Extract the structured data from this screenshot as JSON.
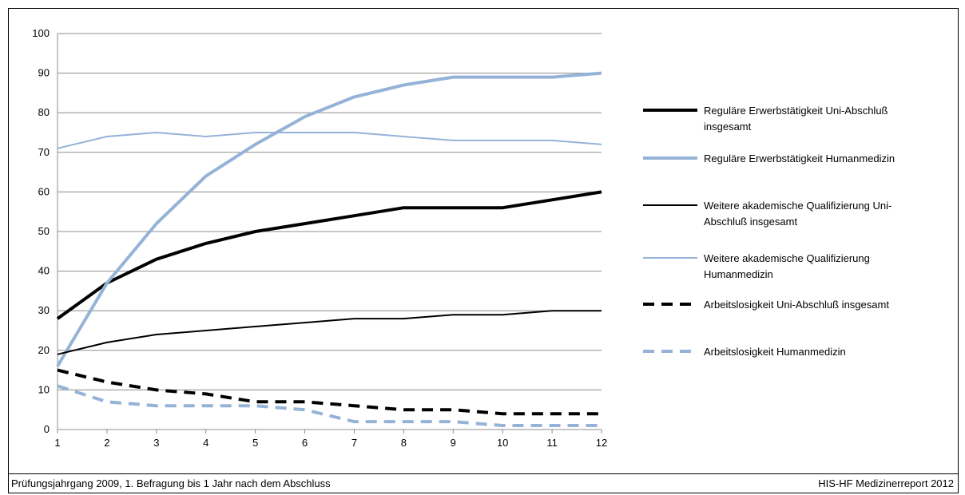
{
  "chart_data": {
    "type": "line",
    "x": [
      1,
      2,
      3,
      4,
      5,
      6,
      7,
      8,
      9,
      10,
      11,
      12
    ],
    "ylim": [
      0,
      100
    ],
    "yticks": [
      0,
      10,
      20,
      30,
      40,
      50,
      60,
      70,
      80,
      90,
      100
    ],
    "grid": true,
    "legend_position": "right",
    "series": [
      {
        "name": "Reguläre Erwerbstätigkeit Uni-Abschluß insgesamt",
        "legend_lines": [
          "Reguläre Erwerbstätigkeit Uni-Abschluß",
          "insgesamt"
        ],
        "values": [
          28,
          37,
          43,
          47,
          50,
          52,
          54,
          56,
          56,
          56,
          58,
          60
        ],
        "color": "#000000",
        "style": "solid",
        "weight": "thick"
      },
      {
        "name": "Reguläre Erwerbstätigkeit Humanmedizin",
        "legend_lines": [
          "Reguläre Erwerbstätigkeit Humanmedizin"
        ],
        "values": [
          16,
          37,
          52,
          64,
          72,
          79,
          84,
          87,
          89,
          89,
          89,
          90
        ],
        "color": "#95b3d7",
        "style": "solid",
        "weight": "thick"
      },
      {
        "name": "Weitere akademische Qualifizierung Uni-Abschluß insgesamt",
        "legend_lines": [
          "Weitere akademische Qualifizierung Uni-",
          "Abschluß insgesamt"
        ],
        "values": [
          19,
          22,
          24,
          25,
          26,
          27,
          28,
          28,
          29,
          29,
          30,
          30
        ],
        "color": "#000000",
        "style": "solid",
        "weight": "thin"
      },
      {
        "name": "Weitere akademische Qualifizierung Humanmedizin",
        "legend_lines": [
          "Weitere akademische Qualifizierung",
          "Humanmedizin"
        ],
        "values": [
          71,
          74,
          75,
          74,
          75,
          75,
          75,
          74,
          73,
          73,
          73,
          72
        ],
        "color": "#95b3d7",
        "style": "solid",
        "weight": "thin"
      },
      {
        "name": "Arbeitslosigkeit Uni-Abschluß insgesamt",
        "legend_lines": [
          "Arbeitslosigkeit Uni-Abschluß insgesamt"
        ],
        "values": [
          15,
          12,
          10,
          9,
          7,
          7,
          6,
          5,
          5,
          4,
          4,
          4
        ],
        "color": "#000000",
        "style": "dashed",
        "weight": "thick"
      },
      {
        "name": "Arbeitslosigkeit Humanmedizin",
        "legend_lines": [
          "Arbeitslosigkeit Humanmedizin"
        ],
        "values": [
          11,
          7,
          6,
          6,
          6,
          5,
          2,
          2,
          2,
          1,
          1,
          1
        ],
        "color": "#95b3d7",
        "style": "dashed",
        "weight": "thick"
      }
    ]
  },
  "footer": {
    "left": "Prüfungsjahrgang 2009, 1. Befragung bis 1 Jahr nach dem Abschluss",
    "right": "HIS-HF Medizinerreport 2012"
  }
}
